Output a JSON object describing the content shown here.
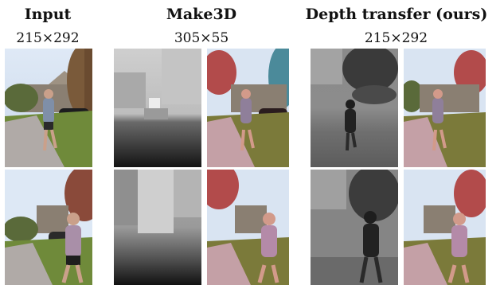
{
  "columns": [
    {
      "title": "Input",
      "size": "215×292"
    },
    {
      "title": "Make3D",
      "size": "305×55"
    },
    {
      "title": "Depth transfer (ours)",
      "size": "215×292"
    }
  ],
  "rows": [
    {
      "panels": [
        "input-photo",
        "make3d-depth",
        "make3d-anaglyph",
        "ours-depth",
        "ours-anaglyph"
      ]
    },
    {
      "panels": [
        "input-photo",
        "make3d-depth",
        "make3d-anaglyph",
        "ours-depth",
        "ours-anaglyph"
      ]
    }
  ]
}
